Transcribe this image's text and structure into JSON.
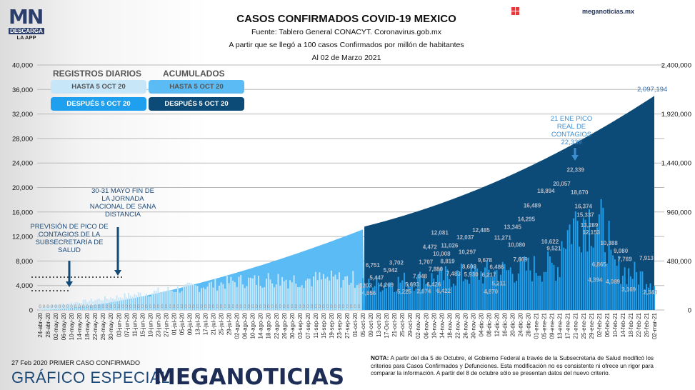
{
  "header": {
    "logo_main": "MN",
    "logo_download": "DESCARGA",
    "logo_app": "LA APP",
    "title": "CASOS CONFIRMADOS COVID-19 MEXICO",
    "source": "Fuente: Tablero General CONACYT. Coronavirus.gob.mx",
    "subtitle": "A partir que se llegó a 100 casos Confirmados por millón de habitantes",
    "date": "Al 02 de Marzo 2021",
    "site": "meganoticias.mx"
  },
  "legend": {
    "daily_heading": "REGISTROS DIARIOS",
    "cumulative_heading": "ACUMULADOS",
    "daily_before": "HASTA 5 OCT 20",
    "daily_after": "DESPUÉS 5 OCT 20",
    "cum_before": "HASTA 5 OCT 20",
    "cum_after": "DESPUÉS 5 OCT 20"
  },
  "annotations": {
    "prevision": "PREVISIÓN DE PICO DE CONTAGIOS DE LA SUBSECRETARÍA DE SALUD",
    "sana_distancia": "30-31 MAYO FIN DE LA JORNADA NACIONAL DE SANA DISTANCIA",
    "peak": "21 ENE PICO REAL DE CONTAGIOS 22,339",
    "cumulative_total": "2,097,194"
  },
  "footer": {
    "first_case": "27 Feb 2020 PRIMER CASO CONFIRMADO",
    "special": "GRÁFICO ESPECIAL",
    "brand_pre": "MEG",
    "brand_a": "A",
    "brand_post": "NOTICIAS",
    "note_label": "NOTA:",
    "note": " A partir del dia 5 de Octubre, el Gobierno Federal a través de la Subsecretaria de Salud modificó los criterios para Casos Confirmados y Defunciones. Esta modificación no es consistente ni ofrece un rigor para comparar la información. A partir del 8 de octubre sólo se presentan datos del nuevo criterio."
  },
  "colors": {
    "daily_before": "#c7e6f8",
    "daily_after": "#1ea0ee",
    "cum_before": "#5bbcf5",
    "cum_after": "#0c4a78",
    "accent_red": "#e02a2a",
    "navy": "#1e2d55"
  },
  "chart_data": {
    "type": "bar+area",
    "title": "CASOS CONFIRMADOS COVID-19 MEXICO",
    "left_axis": {
      "label": "Registros diarios",
      "ylim": [
        0,
        40000
      ],
      "ticks": [
        "0",
        "4,000",
        "8,000",
        "12,000",
        "16,000",
        "20,000",
        "24,000",
        "28,000",
        "32,000",
        "36,000",
        "40,000"
      ]
    },
    "right_axis": {
      "label": "Acumulados",
      "ylim": [
        0,
        2400000
      ],
      "ticks": [
        "0",
        "480,000",
        "960,000",
        "1,440,000",
        "1,920,000",
        "2,400,000"
      ]
    },
    "x_ticks": [
      "24-abr-20",
      "28-abr-20",
      "02-may-20",
      "06-may-20",
      "10-may-20",
      "14-may-20",
      "18-may-20",
      "22-may-20",
      "26-may-20",
      "30-may-20",
      "03-jun-20",
      "07-jun-20",
      "11-jun-20",
      "15-jun-20",
      "19-jun-20",
      "23-jun-20",
      "27-jun-20",
      "01-jul-20",
      "05-jul-20",
      "09-jul-20",
      "13-jul-20",
      "17-jul-20",
      "21-jul-20",
      "25-jul-20",
      "29-jul-20",
      "02-ago-20",
      "06-ago-20",
      "10-ago-20",
      "14-ago-20",
      "18-ago-20",
      "22-ago-20",
      "26-ago-20",
      "30-ago-20",
      "03-sep-20",
      "07-sep-20",
      "11-sep-20",
      "15-sep-20",
      "19-sep-20",
      "23-sep-20",
      "27-sep-20",
      "01-oct-20",
      "05-oct-20",
      "09-oct-20",
      "13-oct-20",
      "17-Oct-20",
      "21-oct-20",
      "25-oct-20",
      "29-oct-20",
      "02-nov-20",
      "06-nov-20",
      "10-nov-20",
      "14-nov-20",
      "18-nov-20",
      "22-nov-20",
      "26-nov-20",
      "30-nov-20",
      "04-dic-20",
      "08-dic-20",
      "12-dic-20",
      "16-dic-20",
      "20-dic-20",
      "24-dic-20",
      "28-dic-20",
      "01-ene-21",
      "05-ene-21",
      "09-ene-21",
      "13-ene-21",
      "17-ene-21",
      "21-ene-21",
      "25-ene-21",
      "29-ene-21",
      "02-feb-21",
      "06-feb-21",
      "10-feb-21",
      "14-feb-21",
      "18-feb-21",
      "22-feb-21",
      "26-feb-21",
      "02-mar-21"
    ],
    "split_tick": "05-oct-20",
    "cumulative_before_oct5_end": 789000,
    "cumulative_final": 2097194,
    "daily_labels": [
      {
        "date": "06-oct-20",
        "value": "5,203"
      },
      {
        "date": "08-oct-20",
        "value": "4,656"
      },
      {
        "date": "10-oct-20",
        "value": "6,751"
      },
      {
        "date": "12-oct-20",
        "value": "5,447"
      },
      {
        "date": "17-oct-20",
        "value": "4,269"
      },
      {
        "date": "19-oct-20",
        "value": "5,942"
      },
      {
        "date": "22-oct-20",
        "value": "3,702"
      },
      {
        "date": "26-oct-20",
        "value": "5,225"
      },
      {
        "date": "30-oct-20",
        "value": "5,693"
      },
      {
        "date": "03-nov-20",
        "value": "7,048"
      },
      {
        "date": "05-nov-20",
        "value": "2,874"
      },
      {
        "date": "06-nov-20",
        "value": "1,707"
      },
      {
        "date": "08-nov-20",
        "value": "4,472"
      },
      {
        "date": "10-nov-20",
        "value": "6,426"
      },
      {
        "date": "11-nov-20",
        "value": "7,880"
      },
      {
        "date": "13-nov-20",
        "value": "12,081"
      },
      {
        "date": "14-nov-20",
        "value": "10,008"
      },
      {
        "date": "15-nov-20",
        "value": "6,422"
      },
      {
        "date": "17-nov-20",
        "value": "8,819"
      },
      {
        "date": "18-nov-20",
        "value": "11,026"
      },
      {
        "date": "20-nov-20",
        "value": "7,483"
      },
      {
        "date": "26-nov-20",
        "value": "12,037"
      },
      {
        "date": "27-nov-20",
        "value": "10,297"
      },
      {
        "date": "28-nov-20",
        "value": "8,608"
      },
      {
        "date": "29-nov-20",
        "value": "5,930"
      },
      {
        "date": "04-dic-20",
        "value": "12,485"
      },
      {
        "date": "06-dic-20",
        "value": "9,678"
      },
      {
        "date": "08-dic-20",
        "value": "6,217"
      },
      {
        "date": "09-dic-20",
        "value": "4,870"
      },
      {
        "date": "12-dic-20",
        "value": "6,486"
      },
      {
        "date": "13-dic-20",
        "value": "5,211"
      },
      {
        "date": "15-dic-20",
        "value": "11,271"
      },
      {
        "date": "20-dic-20",
        "value": "13,345"
      },
      {
        "date": "22-dic-20",
        "value": "10,080"
      },
      {
        "date": "24-dic-20",
        "value": "7,669"
      },
      {
        "date": "27-dic-20",
        "value": "14,295"
      },
      {
        "date": "30-dic-20",
        "value": "16,489"
      },
      {
        "date": "06-ene-21",
        "value": "18,894"
      },
      {
        "date": "08-ene-21",
        "value": "10,622"
      },
      {
        "date": "10-ene-21",
        "value": "9,521"
      },
      {
        "date": "14-ene-21",
        "value": "20,057"
      },
      {
        "date": "21-ene-21",
        "value": "22,339"
      },
      {
        "date": "23-ene-21",
        "value": "18,670"
      },
      {
        "date": "25-ene-21",
        "value": "16,374"
      },
      {
        "date": "26-ene-21",
        "value": "15,337"
      },
      {
        "date": "28-ene-21",
        "value": "13,289"
      },
      {
        "date": "29-ene-21",
        "value": "12,153"
      },
      {
        "date": "31-ene-21",
        "value": "4,394"
      },
      {
        "date": "02-feb-21",
        "value": "6,865"
      },
      {
        "date": "07-feb-21",
        "value": "10,388"
      },
      {
        "date": "09-feb-21",
        "value": "4,089"
      },
      {
        "date": "13-feb-21",
        "value": "9,080"
      },
      {
        "date": "15-feb-21",
        "value": "7,769"
      },
      {
        "date": "17-feb-21",
        "value": "3,169"
      },
      {
        "date": "26-feb-21",
        "value": "7,913"
      },
      {
        "date": "28-feb-21",
        "value": "2,343"
      }
    ],
    "grid": true,
    "legend": "top-left"
  }
}
